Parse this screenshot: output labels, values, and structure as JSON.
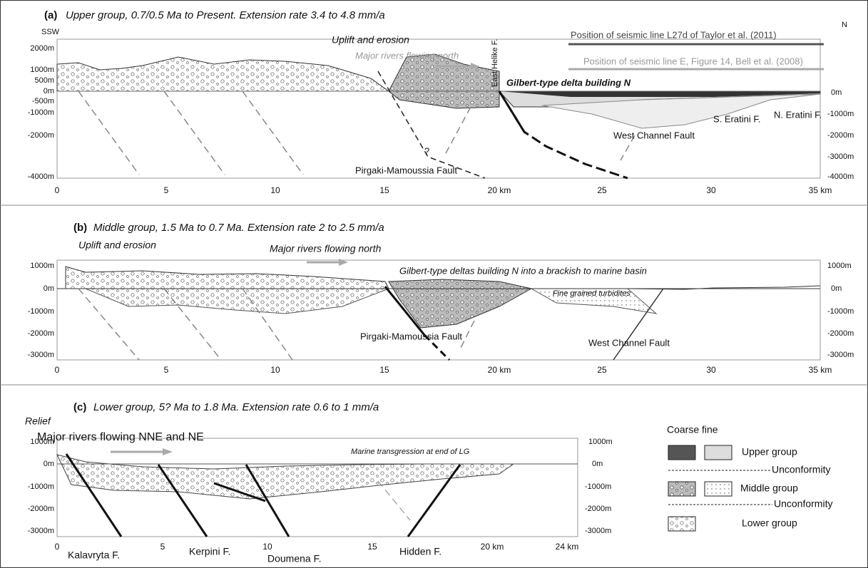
{
  "panels": [
    {
      "label": "(a)",
      "title": "Upper group, 0.7/0.5 Ma to Present. Extension rate 3.4 to 4.8 mm/a",
      "left_direction": "SSW",
      "right_direction": "N",
      "left_depths": [
        "2000m",
        "1000m",
        "500m",
        "0m",
        "-500m",
        "-1000m",
        "-2000m",
        "-4000m"
      ],
      "right_depths": [
        "0m",
        "-1000m",
        "-2000m",
        "-3000m",
        "-4000m"
      ],
      "distances": [
        "0",
        "5",
        "10",
        "15",
        "20 km",
        "25",
        "30",
        "35 km"
      ],
      "annotations": [
        "Uplift and erosion",
        "Major rivers flowing north",
        "East Helike F.",
        "Gilbert-type delta building N",
        "Position of seismic line L27d of Taylor et al. (2011)",
        "Position of seismic line E, Figure 14, Bell et al. (2008)",
        "West Channel Fault",
        "S. Eratini F.",
        "N. Eratini F.",
        "Pirgaki-Mamoussia Fault",
        "?"
      ]
    },
    {
      "label": "(b)",
      "title": "Middle group, 1.5 Ma to 0.7 Ma. Extension rate 2 to 2.5 mm/a",
      "left_depths": [
        "1000m",
        "0m",
        "-1000m",
        "-2000m",
        "-3000m"
      ],
      "right_depths": [
        "1000m",
        "0m",
        "-1000m",
        "-2000m",
        "-3000m"
      ],
      "distances": [
        "0",
        "5",
        "10",
        "15",
        "20 km",
        "25",
        "30",
        "35 km"
      ],
      "annotations": [
        "Uplift and erosion",
        "Major rivers flowing north",
        "Gilbert-type deltas building N  into a brackish to marine basin",
        "Fine grained turbidites",
        "Pirgaki-Mamoussia Fault",
        "West Channel Fault"
      ]
    },
    {
      "label": "(c)",
      "title": "Lower  group, 5? Ma  to 1.8 Ma. Extension rate 0.6 to 1 mm/a",
      "left_depths": [
        "1000m",
        "0m",
        "-1000m",
        "-2000m",
        "-3000m"
      ],
      "right_depths": [
        "1000m",
        "0m",
        "-1000m",
        "-2000m",
        "-3000m"
      ],
      "distances": [
        "0",
        "5",
        "10",
        "15",
        "20 km",
        "24 km"
      ],
      "annotations": [
        "Relief",
        "Major rivers flowing NNE and NE",
        "Marine transgression at end of LG",
        "Kalavryta F.",
        "Kerpini F.",
        "Doumena F.",
        "Hidden F."
      ]
    }
  ],
  "legend": {
    "header": "Coarse fine",
    "items": [
      "Upper group",
      "Unconformity",
      "Middle group",
      "Unconformity",
      "Lower group"
    ]
  }
}
